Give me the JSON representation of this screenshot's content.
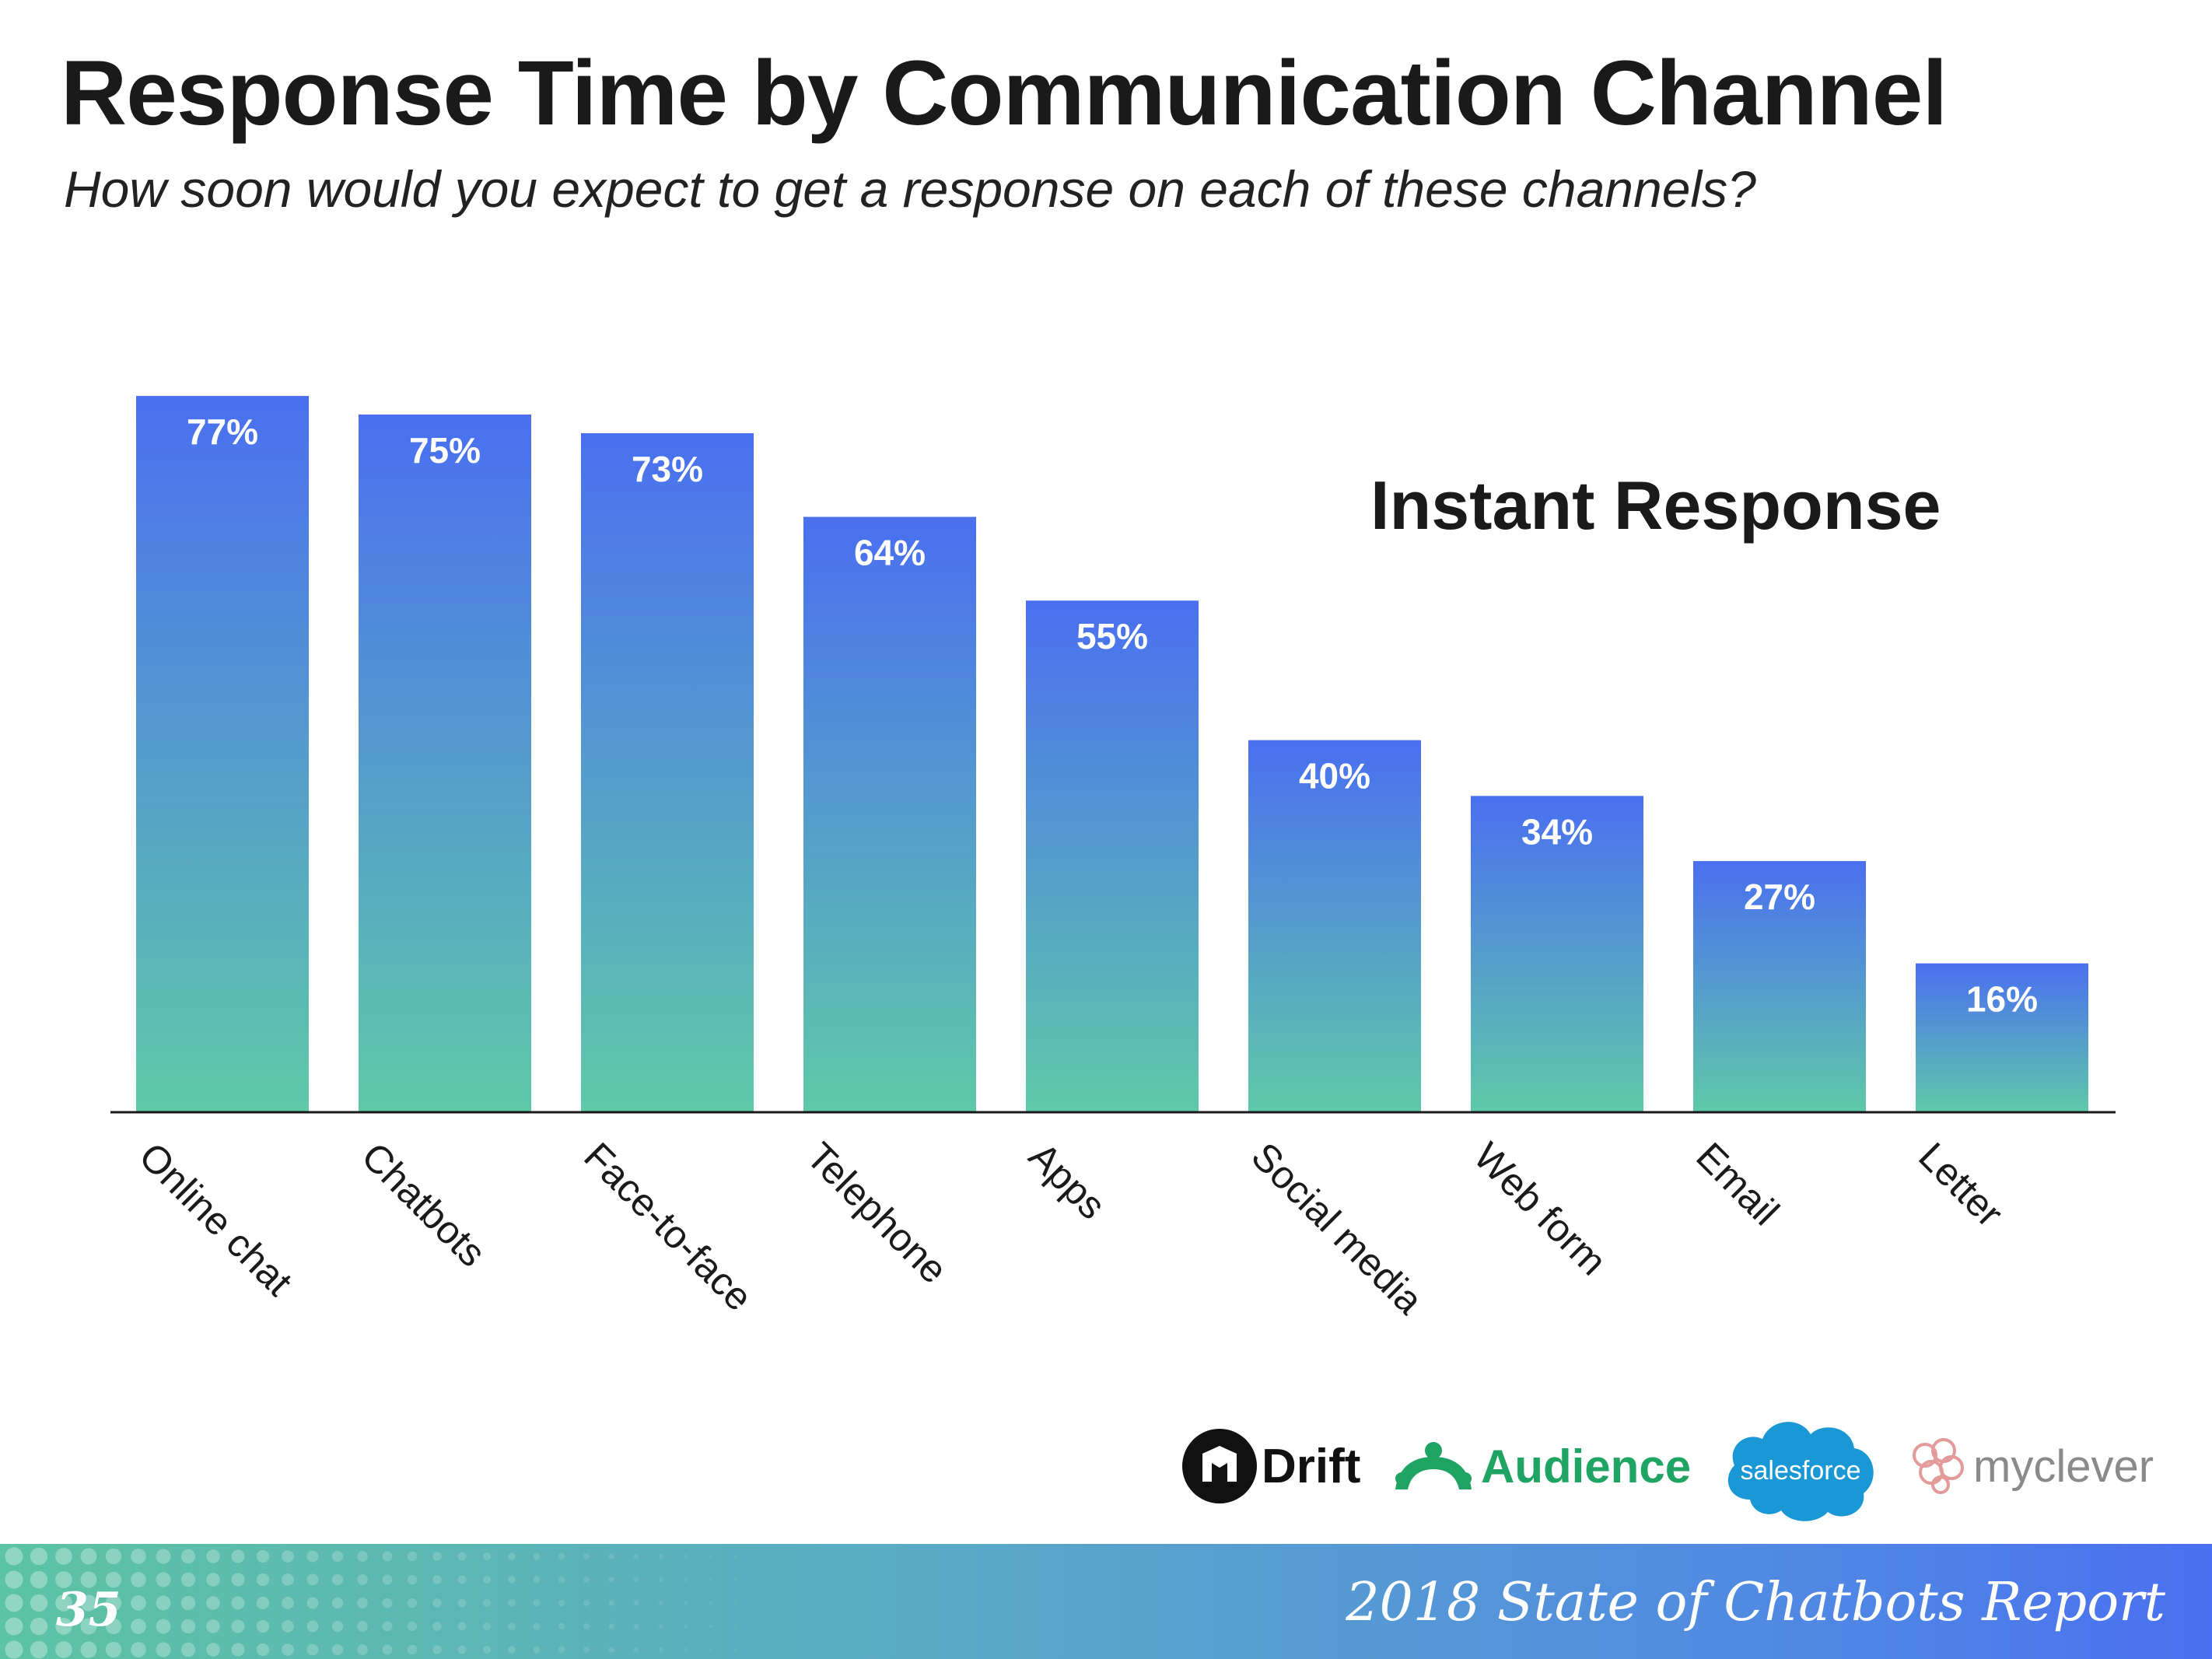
{
  "header": {
    "title": "Response Time by Communication Channel",
    "subtitle": "How soon would you expect to get a response on each of these channels?"
  },
  "chart_data": {
    "type": "bar",
    "title": "Instant Response",
    "categories": [
      "Online chat",
      "Chatbots",
      "Face-to-face",
      "Telephone",
      "Apps",
      "Social media",
      "Web form",
      "Email",
      "Letter"
    ],
    "values": [
      77,
      75,
      73,
      64,
      55,
      40,
      34,
      27,
      16
    ],
    "value_labels": [
      "77%",
      "75%",
      "73%",
      "64%",
      "55%",
      "40%",
      "34%",
      "27%",
      "16%"
    ],
    "xlabel": "",
    "ylabel": "",
    "ylim": [
      0,
      100
    ],
    "grid": false,
    "colors": {
      "bar_top": "#4a6ff0",
      "bar_bottom": "#5fc9a8",
      "label": "#ffffff",
      "axis": "#1a1a1a"
    }
  },
  "logos": {
    "drift": "Drift",
    "audience": "Audience",
    "salesforce": "salesforce",
    "myclever": "myclever"
  },
  "footer": {
    "page_number": "35",
    "report_title": "2018 State of Chatbots Report",
    "colors": {
      "start": "#5cc3a3",
      "end": "#4a6ff0"
    }
  }
}
